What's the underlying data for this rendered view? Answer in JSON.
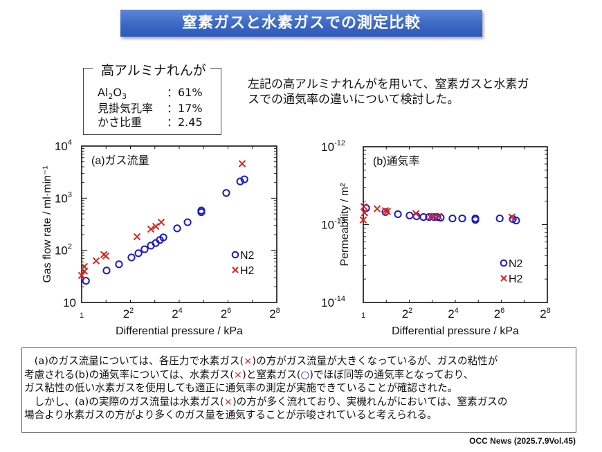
{
  "title": "窒素ガスと水素ガスでの測定比較",
  "spec": {
    "heading": "高アルミナれんが",
    "rows": [
      {
        "label_main": "Al",
        "sub1": "2",
        "label_mid": "O",
        "sub2": "3",
        "value": "：61%"
      },
      {
        "label": "見掛気孔率",
        "value": "：17%"
      },
      {
        "label": "かさ比重",
        "value": "：2.45"
      }
    ]
  },
  "description": {
    "line1": "左記の高アルミナれんがを用いて、窒素ガスと水素ガ",
    "line2": "スでの通気率の違いについて検討した。"
  },
  "colors": {
    "n2": "#1a1acc",
    "h2": "#e0201a",
    "title_bg": "#3a66c4"
  },
  "chart_data": [
    {
      "type": "scatter",
      "panel_label": "(a)ガス流量",
      "xlabel": "Differential pressure / kPa",
      "ylabel": "Gas flow rate / ml·min⁻¹",
      "x_scale": "log2",
      "y_scale": "log10",
      "xlim": [
        1,
        256
      ],
      "ylim": [
        10,
        10000
      ],
      "x_ticks": [
        {
          "base": "1",
          "exp": ""
        },
        {
          "base": "2",
          "exp": "2"
        },
        {
          "base": "2",
          "exp": "4"
        },
        {
          "base": "2",
          "exp": "6"
        },
        {
          "base": "2",
          "exp": "8"
        }
      ],
      "y_ticks": [
        {
          "base": "10",
          "exp": ""
        },
        {
          "base": "10",
          "exp": "2"
        },
        {
          "base": "10",
          "exp": "3"
        },
        {
          "base": "10",
          "exp": "4"
        }
      ],
      "legend": {
        "placement": "bottom-right",
        "entries": [
          "N2",
          "H2"
        ]
      },
      "series": [
        {
          "name": "N2",
          "marker": "circle",
          "points": [
            [
              1.13,
              26
            ],
            [
              2.03,
              41
            ],
            [
              2.89,
              54
            ],
            [
              4.12,
              73
            ],
            [
              5.02,
              88
            ],
            [
              5.98,
              105
            ],
            [
              7.15,
              123
            ],
            [
              8.21,
              138
            ],
            [
              9.24,
              158
            ],
            [
              10.2,
              177
            ],
            [
              15.1,
              264
            ],
            [
              20.3,
              346
            ],
            [
              30.0,
              580
            ],
            [
              30.0,
              540
            ],
            [
              60.9,
              1260
            ],
            [
              90.5,
              2100
            ],
            [
              102,
              2300
            ]
          ]
        },
        {
          "name": "H2",
          "marker": "cross",
          "points": [
            [
              1.0,
              33
            ],
            [
              1.08,
              40
            ],
            [
              1.08,
              49
            ],
            [
              1.51,
              63
            ],
            [
              1.88,
              83
            ],
            [
              1.99,
              78
            ],
            [
              4.83,
              183
            ],
            [
              7.15,
              255
            ],
            [
              8.21,
              288
            ],
            [
              9.6,
              346
            ],
            [
              95.8,
              4600
            ]
          ]
        }
      ]
    },
    {
      "type": "scatter",
      "panel_label": "(b)通気率",
      "xlabel": "Differential pressure / kPa",
      "ylabel": "Permeability / m²",
      "x_scale": "log2",
      "y_scale": "log10",
      "xlim": [
        1,
        256
      ],
      "ylim": [
        1e-14,
        1e-12
      ],
      "x_ticks": [
        {
          "base": "1",
          "exp": ""
        },
        {
          "base": "2",
          "exp": "2"
        },
        {
          "base": "2",
          "exp": "4"
        },
        {
          "base": "2",
          "exp": "6"
        },
        {
          "base": "2",
          "exp": "8"
        }
      ],
      "y_ticks": [
        {
          "base": "10",
          "exp": "-14"
        },
        {
          "base": "10",
          "exp": "-13"
        },
        {
          "base": "10",
          "exp": "-12"
        }
      ],
      "legend": {
        "placement": "bottom-right",
        "entries": [
          "N2",
          "H2"
        ]
      },
      "series": [
        {
          "name": "N2",
          "marker": "circle",
          "points": [
            [
              1.09,
              1.63e-13
            ],
            [
              1.95,
              1.45e-13
            ],
            [
              2.84,
              1.36e-13
            ],
            [
              4.04,
              1.31e-13
            ],
            [
              4.98,
              1.28e-13
            ],
            [
              6.13,
              1.25e-13
            ],
            [
              7.25,
              1.25e-13
            ],
            [
              8.4,
              1.25e-13
            ],
            [
              9.3,
              1.25e-13
            ],
            [
              10.3,
              1.23e-13
            ],
            [
              14.7,
              1.2e-13
            ],
            [
              19.7,
              1.2e-13
            ],
            [
              29.3,
              1.2e-13
            ],
            [
              29.3,
              1.15e-13
            ],
            [
              61,
              1.2e-13
            ],
            [
              90.5,
              1.18e-13
            ],
            [
              100,
              1.13e-13
            ]
          ]
        },
        {
          "name": "H2",
          "marker": "cross",
          "points": [
            [
              1.02,
              1.7e-13
            ],
            [
              1.04,
              1.42e-13
            ],
            [
              1.0,
              1.15e-13
            ],
            [
              1.52,
              1.6e-13
            ],
            [
              1.95,
              1.51e-13
            ],
            [
              2.07,
              1.48e-13
            ],
            [
              4.88,
              1.39e-13
            ],
            [
              7.55,
              1.25e-13
            ],
            [
              8.5,
              1.28e-13
            ],
            [
              9.7,
              1.28e-13
            ],
            [
              88,
              1.25e-13
            ]
          ]
        }
      ]
    }
  ],
  "notes": [
    [
      {
        "t": "　(a)のガス流量については、各圧力で水素ガス("
      },
      {
        "t": "×",
        "c": "red"
      },
      {
        "t": ")の方がガス流量が大きくなっているが、ガスの粘性が"
      }
    ],
    [
      {
        "t": "考慮される(b)の通気率については、水素ガス("
      },
      {
        "t": "×",
        "c": "red"
      },
      {
        "t": ")と窒素ガス("
      },
      {
        "t": "○",
        "c": "blue"
      },
      {
        "t": ")でほぼ同等の通気率となっており、"
      }
    ],
    [
      {
        "t": "ガス粘性の低い水素ガスを使用しても適正に通気率の測定が実施できていることが確認された。"
      }
    ],
    [
      {
        "t": "　しかし、(a)の実際のガス流量は水素ガス("
      },
      {
        "t": "×",
        "c": "red"
      },
      {
        "t": ")の方が多く流れており、実機れんがにおいては、窒素ガスの"
      }
    ],
    [
      {
        "t": "場合より水素ガスの方がより多くのガス量を通気することが示唆されていると考えられる。"
      }
    ]
  ],
  "credit": "OCC News (2025.7.9Vol.45)"
}
